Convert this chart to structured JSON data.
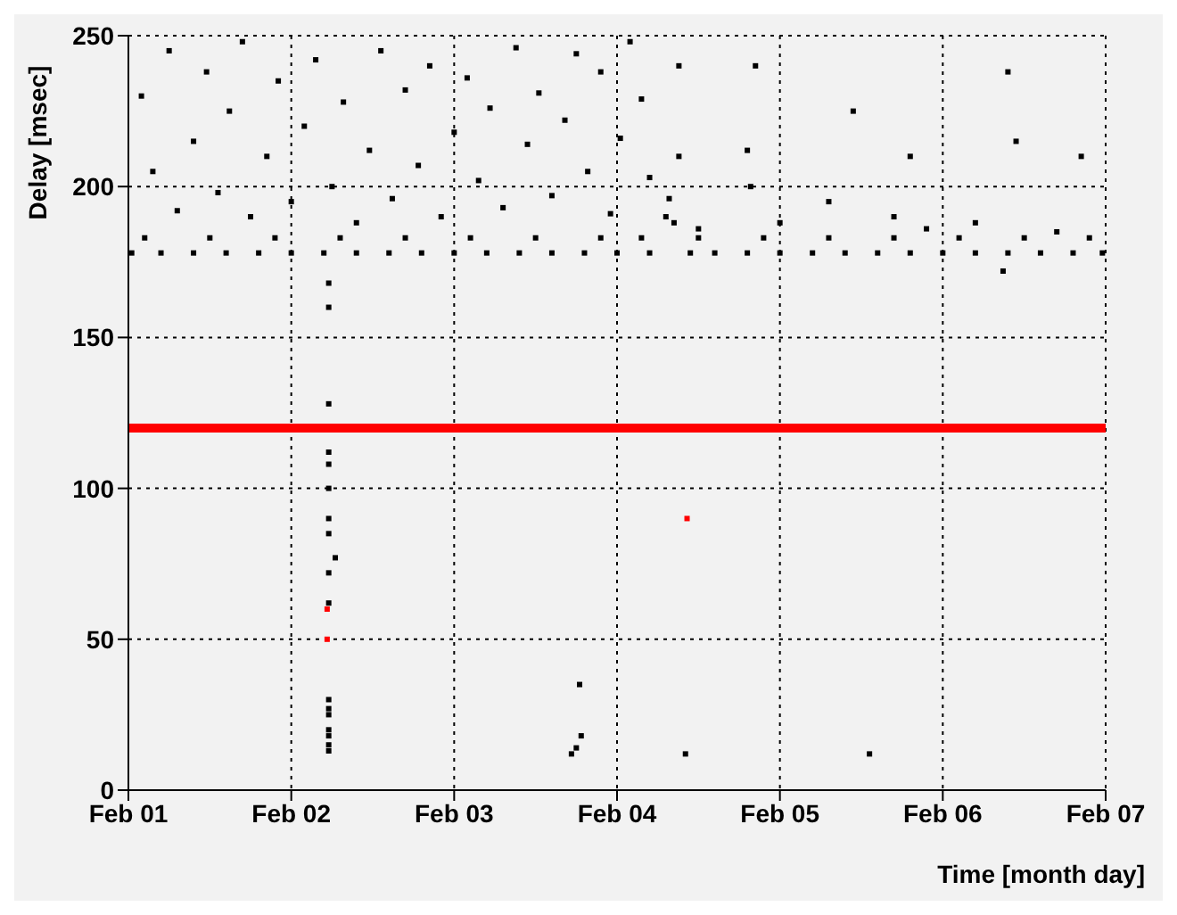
{
  "chart_data": {
    "type": "scatter",
    "xlabel": "Time [month day]",
    "ylabel": "Delay [msec]",
    "xlim": [
      "--02-01",
      "--02-07"
    ],
    "ylim": [
      0,
      250
    ],
    "xticks": [
      {
        "value": "--02-01",
        "label": "Feb 01"
      },
      {
        "value": "--02-02",
        "label": "Feb 02"
      },
      {
        "value": "--02-03",
        "label": "Feb 03"
      },
      {
        "value": "--02-04",
        "label": "Feb 04"
      },
      {
        "value": "--02-05",
        "label": "Feb 05"
      },
      {
        "value": "--02-06",
        "label": "Feb 06"
      },
      {
        "value": "--02-07",
        "label": "Feb 07"
      }
    ],
    "yticks": [
      0,
      50,
      100,
      150,
      200,
      250
    ],
    "grid": true,
    "legend": false,
    "marker": "square",
    "ref_lines": [
      {
        "axis": "y",
        "value": 120,
        "color": "#ff0000"
      }
    ],
    "series": [
      {
        "color": "#000000",
        "x": [
          "--02-01T00:29",
          "--02-01T04:48",
          "--02-01T09:36",
          "--02-01T14:24",
          "--02-01T19:12",
          "--02-02T00:00",
          "--02-02T04:48",
          "--02-02T09:36",
          "--02-02T14:24",
          "--02-02T19:12",
          "--02-03T00:00",
          "--02-03T04:48",
          "--02-03T09:36",
          "--02-03T14:24",
          "--02-03T19:12",
          "--02-04T00:00",
          "--02-04T04:48",
          "--02-04T10:48",
          "--02-04T14:24",
          "--02-04T19:12",
          "--02-05T00:00",
          "--02-05T04:48",
          "--02-05T09:36",
          "--02-05T14:24",
          "--02-05T19:12",
          "--02-06T00:00",
          "--02-06T04:48",
          "--02-06T09:36",
          "--02-06T14:24",
          "--02-06T19:12",
          "--02-06T23:31",
          "--02-01T02:24",
          "--02-01T12:00",
          "--02-01T21:36",
          "--02-02T07:12",
          "--02-02T16:48",
          "--02-03T02:24",
          "--02-03T12:00",
          "--02-03T21:36",
          "--02-04T03:36",
          "--02-04T12:00",
          "--02-04T21:36",
          "--02-05T07:12",
          "--02-05T16:48",
          "--02-06T02:24",
          "--02-06T12:00",
          "--02-06T21:36",
          "--02-01T01:55",
          "--02-01T03:36",
          "--02-01T06:00",
          "--02-01T07:12",
          "--02-01T09:36",
          "--02-01T11:31",
          "--02-01T13:12",
          "--02-01T14:53",
          "--02-01T16:48",
          "--02-01T18:00",
          "--02-01T20:24",
          "--02-01T22:05",
          "--02-02T00:00",
          "--02-02T01:55",
          "--02-02T03:36",
          "--02-02T06:00",
          "--02-02T07:41",
          "--02-02T09:36",
          "--02-02T11:31",
          "--02-02T13:12",
          "--02-02T14:53",
          "--02-02T16:48",
          "--02-02T18:43",
          "--02-02T20:24",
          "--02-02T22:05",
          "--02-03T00:00",
          "--02-03T01:55",
          "--02-03T03:36",
          "--02-03T05:17",
          "--02-03T07:12",
          "--02-03T09:07",
          "--02-03T10:48",
          "--02-03T12:29",
          "--02-03T14:24",
          "--02-03T16:19",
          "--02-03T18:00",
          "--02-03T19:41",
          "--02-03T21:36",
          "--02-03T23:02",
          "--02-04T00:29",
          "--02-04T01:55",
          "--02-04T03:36",
          "--02-04T04:48",
          "--02-04T07:12",
          "--02-04T07:41",
          "--02-04T08:24",
          "--02-04T09:07",
          "--02-04T09:07",
          "--02-04T12:00",
          "--02-04T19:12",
          "--02-04T19:41",
          "--02-04T20:24",
          "--02-05T00:00",
          "--02-05T07:12",
          "--02-05T10:48",
          "--02-05T16:48",
          "--02-05T19:12",
          "--02-05T21:36",
          "--02-06T04:48",
          "--02-06T08:53",
          "--02-06T09:36",
          "--02-06T10:48",
          "--02-06T16:48",
          "--02-06T20:24",
          "--02-02T05:31",
          "--02-02T05:31",
          "--02-02T05:31",
          "--02-02T05:31",
          "--02-02T05:31",
          "--02-02T05:31",
          "--02-02T05:31",
          "--02-02T05:31",
          "--02-02T05:31",
          "--02-02T06:29",
          "--02-02T05:31",
          "--02-02T05:31",
          "--02-02T05:31",
          "--02-02T05:31",
          "--02-02T05:31",
          "--02-02T05:31",
          "--02-02T05:31",
          "--02-02T05:31",
          "--02-03T17:17",
          "--02-03T18:00",
          "--02-03T18:43",
          "--02-03T18:29",
          "--02-04T10:05",
          "--02-05T13:12"
        ],
        "values": [
          178,
          178,
          178,
          178,
          178,
          178,
          178,
          178,
          178,
          178,
          178,
          178,
          178,
          178,
          178,
          178,
          178,
          178,
          178,
          178,
          178,
          178,
          178,
          178,
          178,
          178,
          178,
          178,
          178,
          178,
          178,
          183,
          183,
          183,
          183,
          183,
          183,
          183,
          183,
          183,
          183,
          183,
          183,
          183,
          183,
          183,
          183,
          230,
          205,
          245,
          192,
          215,
          238,
          198,
          225,
          248,
          190,
          210,
          235,
          195,
          220,
          242,
          200,
          228,
          188,
          212,
          245,
          196,
          232,
          207,
          240,
          190,
          218,
          236,
          202,
          226,
          193,
          246,
          214,
          231,
          197,
          222,
          244,
          205,
          238,
          191,
          216,
          248,
          229,
          203,
          190,
          196,
          188,
          210,
          240,
          186,
          212,
          200,
          240,
          188,
          195,
          225,
          190,
          210,
          186,
          188,
          172,
          238,
          215,
          185,
          210,
          13,
          15,
          18,
          20,
          25,
          27,
          30,
          62,
          72,
          77,
          85,
          90,
          100,
          108,
          112,
          128,
          160,
          168,
          12,
          14,
          18,
          35,
          12,
          12
        ]
      },
      {
        "color": "#ff0000",
        "x": [
          "--02-02T05:17",
          "--02-02T05:17",
          "--02-04T10:19"
        ],
        "values": [
          60,
          50,
          90
        ]
      }
    ]
  }
}
